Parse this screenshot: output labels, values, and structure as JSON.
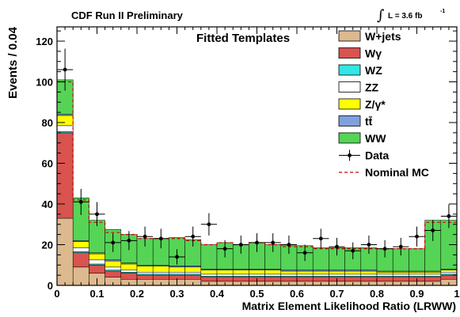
{
  "header": {
    "experiment": "CDF Run II Preliminary",
    "lumi_prefix": "L = 3.6 fb",
    "lumi_exp": "-1"
  },
  "chart_data": {
    "type": "bar",
    "stacked": true,
    "title": "Fitted Templates",
    "xlabel": "Matrix Element Likelihood Ratio (LRWW)",
    "ylabel": "Events / 0.04",
    "xlim": [
      0,
      1
    ],
    "ylim": [
      0,
      127
    ],
    "x_ticks": [
      0,
      0.1,
      0.2,
      0.3,
      0.4,
      0.5,
      0.6,
      0.7,
      0.8,
      0.9,
      1
    ],
    "x_tick_labels": [
      "0",
      "0.1",
      "0.2",
      "0.3",
      "0.4",
      "0.5",
      "0.6",
      "0.7",
      "0.8",
      "0.9",
      "1"
    ],
    "y_ticks": [
      0,
      20,
      40,
      60,
      80,
      100,
      120
    ],
    "y_tick_labels": [
      "0",
      "20",
      "40",
      "60",
      "80",
      "100",
      "120"
    ],
    "bin_edges": [
      0,
      0.04,
      0.08,
      0.12,
      0.16,
      0.2,
      0.24,
      0.28,
      0.32,
      0.36,
      0.4,
      0.44,
      0.48,
      0.52,
      0.56,
      0.6,
      0.64,
      0.68,
      0.72,
      0.76,
      0.8,
      0.84,
      0.88,
      0.92,
      0.96,
      1.0
    ],
    "series": [
      {
        "name": "W+jets",
        "color": "#dcb98e",
        "values": [
          33,
          9,
          6,
          4,
          3,
          3,
          3,
          3,
          3,
          2,
          2,
          2,
          2,
          2,
          2,
          2,
          2,
          2,
          2,
          2,
          2,
          2,
          2,
          2,
          3
        ]
      },
      {
        "name": "Wγ",
        "color": "#d9534f",
        "values": [
          42,
          7,
          4,
          3,
          3,
          2,
          2,
          2,
          2,
          2,
          2,
          2,
          2,
          2,
          2,
          2,
          2,
          2,
          2,
          2,
          2,
          2,
          2,
          2,
          2
        ]
      },
      {
        "name": "WZ",
        "color": "#33e5e5",
        "values": [
          0.5,
          0.5,
          0.5,
          0.5,
          0.5,
          0.5,
          0.5,
          0.5,
          0.5,
          0.5,
          0.5,
          0.5,
          0.5,
          0.5,
          0.5,
          0.5,
          0.5,
          0.5,
          0.5,
          0.5,
          0.5,
          0.5,
          0.5,
          0.5,
          0.5
        ]
      },
      {
        "name": "ZZ",
        "color": "#ffffff",
        "values": [
          3,
          2,
          2,
          1.5,
          1,
          1,
          1,
          1,
          1,
          1,
          1,
          1,
          1,
          1,
          1,
          1,
          1,
          1,
          1,
          1,
          1,
          1,
          1,
          1,
          1
        ]
      },
      {
        "name": "Z/γ*",
        "color": "#ffff00",
        "values": [
          5,
          3,
          3,
          3,
          3,
          3,
          3,
          2.5,
          2.5,
          2,
          2,
          2,
          2,
          2,
          1.5,
          1.5,
          1.5,
          1.5,
          1.5,
          1.5,
          1,
          1,
          1,
          1,
          1
        ]
      },
      {
        "name": "tt̄",
        "color": "#7f9fdf",
        "values": [
          0.5,
          0.5,
          0.5,
          0.5,
          0.5,
          0.5,
          0.5,
          0.5,
          0.5,
          0.5,
          0.5,
          0.5,
          0.5,
          0.5,
          0.5,
          0.5,
          0.5,
          0.5,
          0.5,
          0.5,
          0.5,
          0.5,
          0.5,
          0.5,
          0.5
        ]
      },
      {
        "name": "WW",
        "color": "#55d455",
        "values": [
          17,
          21,
          16,
          15,
          14,
          13,
          13,
          14,
          13,
          12,
          13,
          12,
          13,
          12,
          12,
          12,
          11,
          11,
          11,
          11,
          11,
          11,
          11,
          25,
          24
        ]
      }
    ],
    "data": {
      "name": "Data",
      "x": [
        0.02,
        0.06,
        0.1,
        0.14,
        0.18,
        0.22,
        0.26,
        0.3,
        0.34,
        0.38,
        0.42,
        0.46,
        0.5,
        0.54,
        0.58,
        0.62,
        0.66,
        0.7,
        0.74,
        0.78,
        0.82,
        0.86,
        0.9,
        0.94,
        0.98
      ],
      "y": [
        106,
        41,
        35,
        21,
        22,
        24,
        23,
        14,
        24,
        30,
        18,
        20,
        21,
        21,
        20,
        16,
        23,
        19,
        17,
        20,
        18,
        19,
        24,
        27,
        34
      ]
    },
    "nominal_mc": {
      "name": "Nominal MC",
      "color": "#cc0000",
      "values": [
        100,
        42,
        31,
        26,
        25,
        23,
        23,
        23,
        22,
        20,
        21,
        20,
        21,
        20,
        19,
        19,
        18,
        18,
        18,
        18,
        18,
        18,
        18,
        31,
        31
      ]
    },
    "legend_position": "top-right"
  }
}
